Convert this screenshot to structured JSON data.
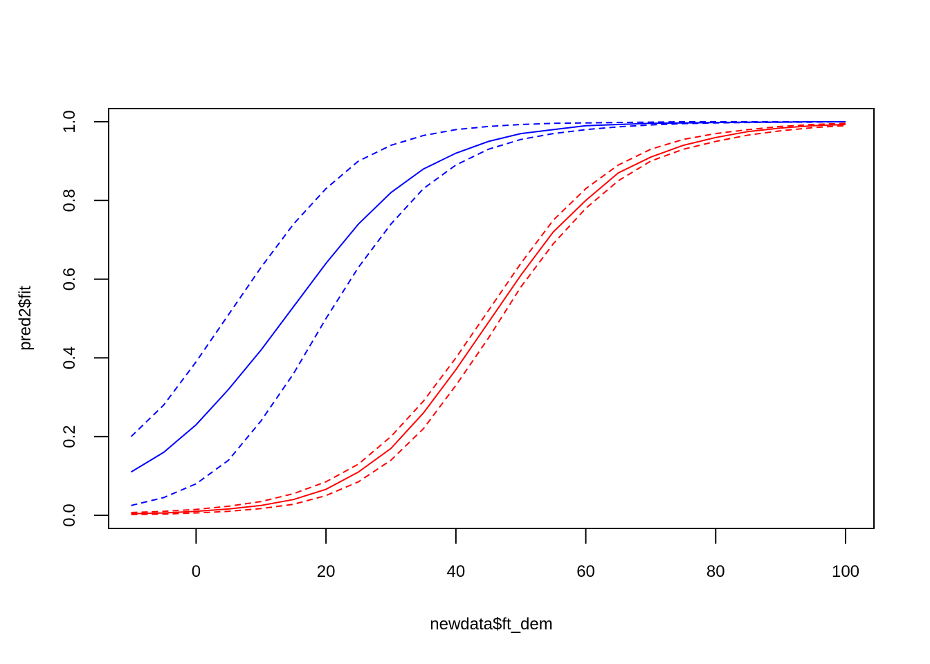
{
  "chart_data": {
    "type": "line",
    "title": "",
    "xlabel": "newdata$ft_dem",
    "ylabel": "pred2$fit",
    "xlim": [
      -10,
      100
    ],
    "ylim": [
      0,
      1
    ],
    "x_ticks": [
      "0",
      "20",
      "40",
      "60",
      "80",
      "100"
    ],
    "y_ticks": [
      "0.0",
      "0.2",
      "0.4",
      "0.6",
      "0.8",
      "1.0"
    ],
    "grid": false,
    "legend": "none",
    "x": [
      -10,
      -5,
      0,
      5,
      10,
      15,
      20,
      25,
      30,
      35,
      40,
      45,
      50,
      55,
      60,
      65,
      70,
      75,
      80,
      85,
      90,
      95,
      100
    ],
    "series": [
      {
        "color": "#0000ff",
        "style": "solid",
        "values": [
          0.11,
          0.16,
          0.23,
          0.32,
          0.42,
          0.53,
          0.64,
          0.74,
          0.82,
          0.88,
          0.92,
          0.95,
          0.97,
          0.98,
          0.99,
          0.993,
          0.996,
          0.997,
          0.998,
          0.999,
          0.999,
          1.0,
          1.0
        ]
      },
      {
        "color": "#0000ff",
        "style": "dashed",
        "values": [
          0.2,
          0.28,
          0.39,
          0.51,
          0.63,
          0.74,
          0.83,
          0.9,
          0.94,
          0.965,
          0.98,
          0.988,
          0.993,
          0.996,
          0.997,
          0.998,
          0.999,
          1.0,
          1.0,
          1.0,
          1.0,
          1.0,
          1.0
        ]
      },
      {
        "color": "#0000ff",
        "style": "dashed",
        "values": [
          0.025,
          0.045,
          0.08,
          0.14,
          0.24,
          0.36,
          0.5,
          0.63,
          0.74,
          0.83,
          0.89,
          0.93,
          0.955,
          0.97,
          0.98,
          0.987,
          0.992,
          0.995,
          0.997,
          0.998,
          0.999,
          0.999,
          1.0
        ]
      },
      {
        "color": "#ff0000",
        "style": "solid",
        "values": [
          0.004,
          0.006,
          0.01,
          0.016,
          0.025,
          0.04,
          0.066,
          0.11,
          0.17,
          0.26,
          0.37,
          0.49,
          0.61,
          0.72,
          0.8,
          0.87,
          0.91,
          0.94,
          0.96,
          0.975,
          0.984,
          0.99,
          0.993
        ]
      },
      {
        "color": "#ff0000",
        "style": "dashed",
        "values": [
          0.007,
          0.01,
          0.015,
          0.023,
          0.035,
          0.055,
          0.085,
          0.13,
          0.2,
          0.29,
          0.4,
          0.52,
          0.64,
          0.75,
          0.83,
          0.89,
          0.93,
          0.955,
          0.97,
          0.98,
          0.988,
          0.993,
          0.996
        ]
      },
      {
        "color": "#ff0000",
        "style": "dashed",
        "values": [
          0.002,
          0.003,
          0.006,
          0.01,
          0.017,
          0.028,
          0.05,
          0.085,
          0.14,
          0.22,
          0.33,
          0.45,
          0.58,
          0.69,
          0.78,
          0.85,
          0.9,
          0.93,
          0.95,
          0.966,
          0.977,
          0.985,
          0.99
        ]
      }
    ]
  }
}
